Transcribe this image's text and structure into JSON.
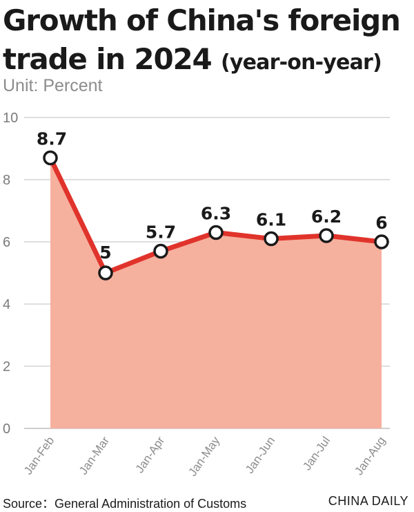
{
  "title_line1": "Growth of China's foreign",
  "title_line2": "trade in 2024",
  "title_suffix": "(year-on-year)",
  "unit": "Unit: Percent",
  "source": "Source：General Administration of Customs",
  "brand": "CHINA DAILY",
  "colors": {
    "line": "#e0332b",
    "area": "#f6b09e",
    "grid": "#bdbdbd",
    "marker_fill": "#ffffff",
    "marker_stroke": "#1a1a1a"
  },
  "chart_data": {
    "type": "area",
    "title": "Growth of China's foreign trade in 2024 (year-on-year)",
    "subtitle": "Unit: Percent",
    "xlabel": "",
    "ylabel": "",
    "categories": [
      "Jan-Feb",
      "Jan-Mar",
      "Jan-Apr",
      "Jan-May",
      "Jan-Jun",
      "Jan-Jul",
      "Jan-Aug"
    ],
    "values": [
      8.7,
      5,
      5.7,
      6.3,
      6.1,
      6.2,
      6
    ],
    "value_labels": [
      "8.7",
      "5",
      "5.7",
      "6.3",
      "6.1",
      "6.2",
      "6"
    ],
    "ylim": [
      0,
      10
    ],
    "yticks": [
      "0",
      "2",
      "4",
      "6",
      "8",
      "10"
    ],
    "grid": true,
    "markers": true,
    "legend": "none"
  }
}
